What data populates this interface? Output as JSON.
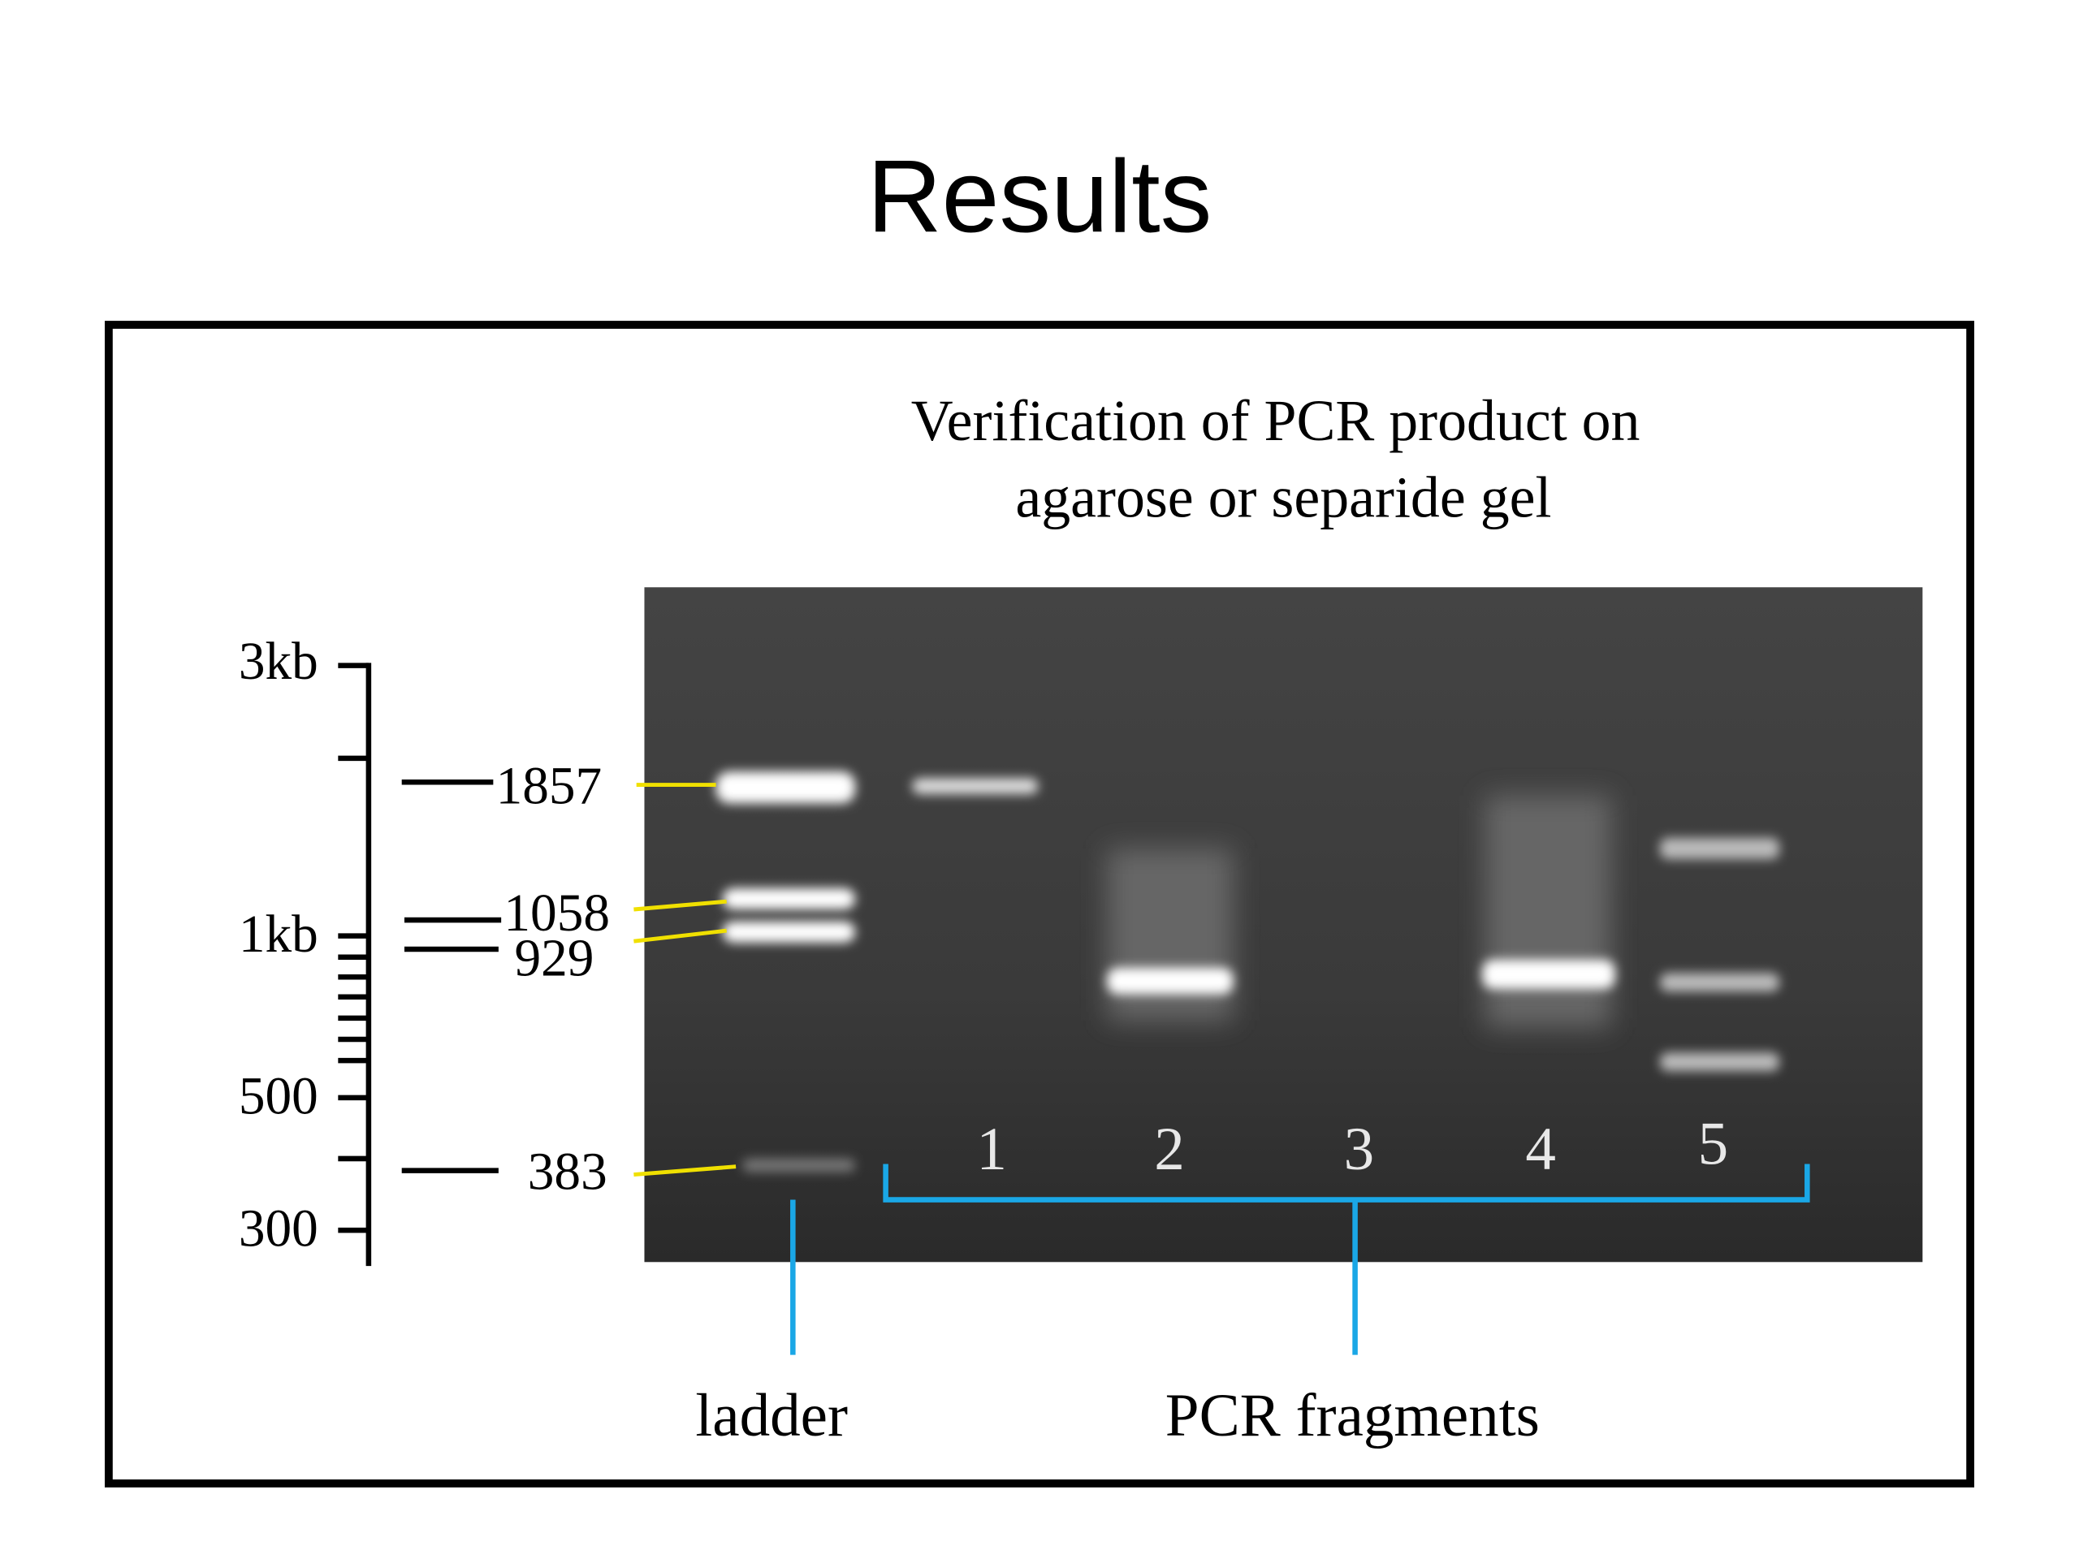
{
  "title": "Results",
  "figure": {
    "title_lines": [
      "Verification of  PCR product on",
      "agarose or separide gel"
    ],
    "scale_labels": [
      "3kb",
      "1kb",
      "500",
      "300"
    ],
    "ladder_sizes": [
      "1857",
      "1058",
      "929",
      "383"
    ],
    "lanes": [
      "1",
      "2",
      "3",
      "4",
      "5"
    ],
    "ladder_label": "ladder",
    "fragments_label": "PCR fragments"
  }
}
